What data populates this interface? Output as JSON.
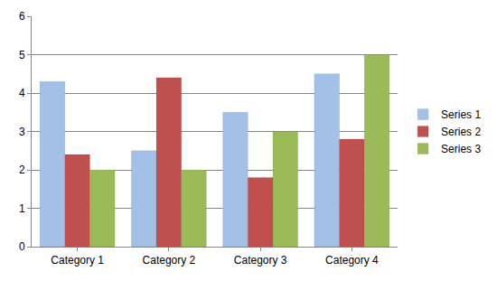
{
  "chart_data": {
    "type": "bar",
    "categories": [
      "Category 1",
      "Category 2",
      "Category 3",
      "Category 4"
    ],
    "series": [
      {
        "name": "Series 1",
        "color": "#a3c0e6",
        "values": [
          4.3,
          2.5,
          3.5,
          4.5
        ]
      },
      {
        "name": "Series 2",
        "color": "#c0504d",
        "values": [
          2.4,
          4.4,
          1.8,
          2.8
        ]
      },
      {
        "name": "Series 3",
        "color": "#9bbb59",
        "values": [
          2,
          2,
          3,
          5
        ]
      }
    ],
    "ylim": [
      0,
      6
    ],
    "yticks": [
      0,
      1,
      2,
      3,
      4,
      5,
      6
    ],
    "grid": true,
    "legend": "right"
  }
}
